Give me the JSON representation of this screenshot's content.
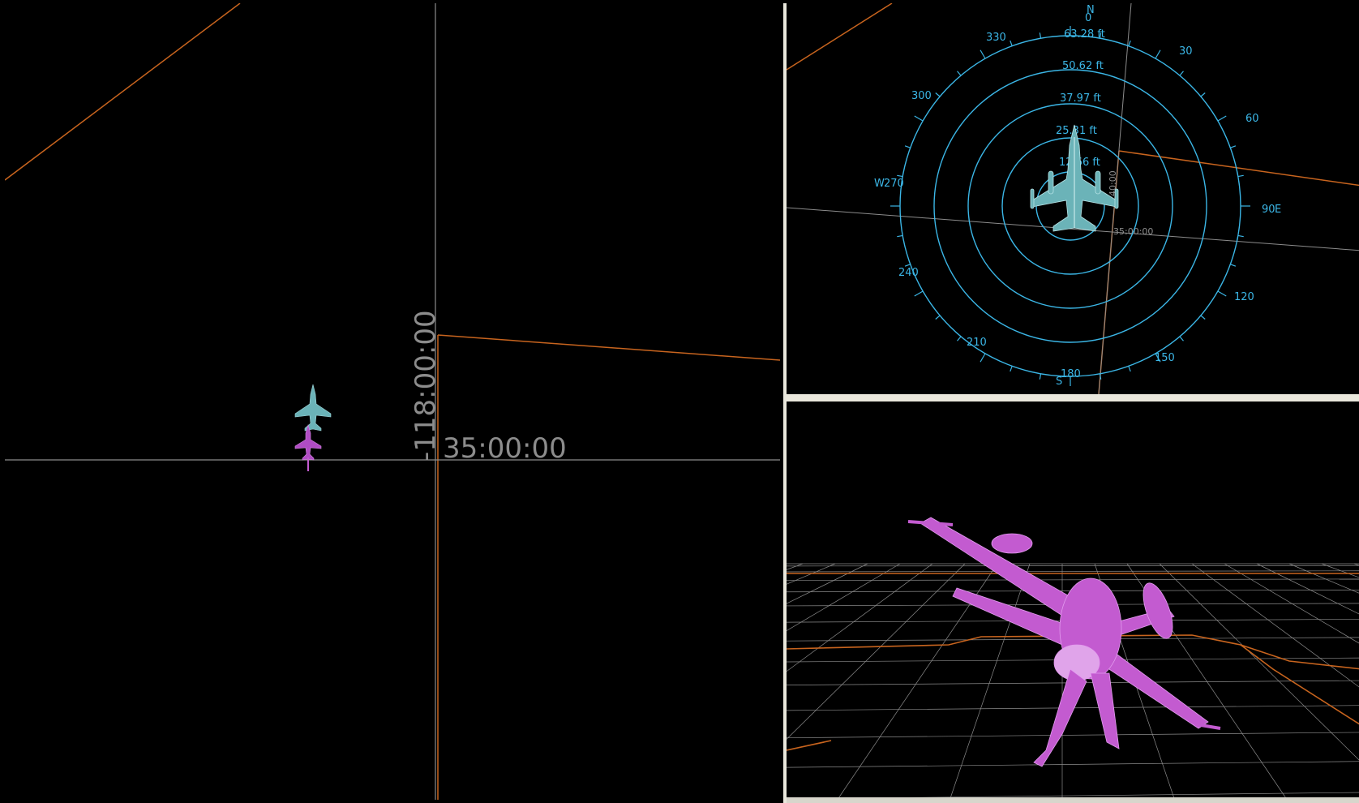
{
  "main_view": {
    "lat_label": "35:00:00",
    "lon_label": "-118:00:00"
  },
  "compass_view": {
    "north": "N",
    "south": "S",
    "west": "W",
    "east": "E",
    "lat_label": "35:00:00",
    "lon_label": "40:00",
    "ranges": [
      "12.66 ft",
      "25.31 ft",
      "37.97 ft",
      "50.62 ft",
      "63.28 ft"
    ],
    "bearings": [
      "0",
      "30",
      "60",
      "90",
      "120",
      "150",
      "180",
      "210",
      "240",
      "270",
      "300",
      "330"
    ]
  },
  "colors": {
    "background": "#000000",
    "grid_line": "#8c8c8c",
    "boundary": "#c8641e",
    "compass": "#3bb6e6",
    "aircraft_blue": "#6bb3b8",
    "aircraft_magenta": "#c35bd0",
    "separator": "#e9e7dc"
  }
}
